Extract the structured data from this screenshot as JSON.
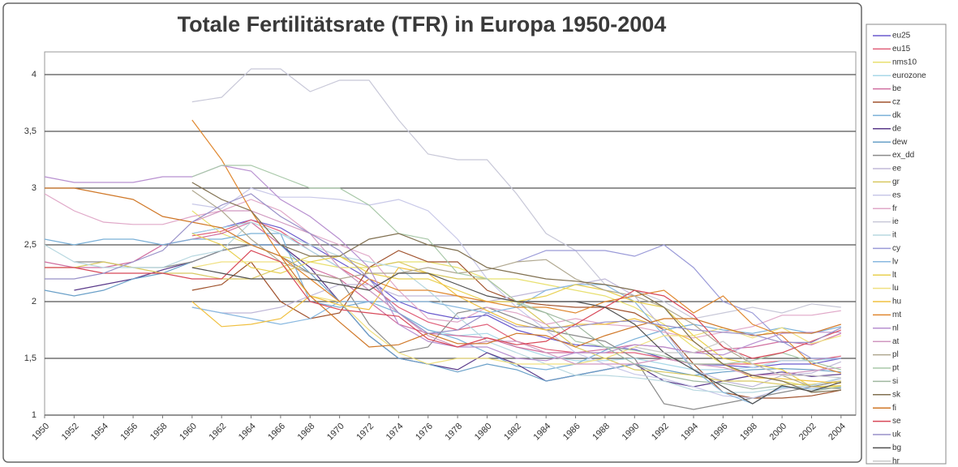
{
  "chart_data": {
    "type": "line",
    "title": "Totale Fertilitätsrate (TFR) in Europa 1950-2004",
    "x": [
      1950,
      1952,
      1954,
      1956,
      1958,
      1960,
      1962,
      1964,
      1966,
      1968,
      1970,
      1972,
      1974,
      1976,
      1978,
      1980,
      1982,
      1984,
      1986,
      1988,
      1990,
      1992,
      1994,
      1996,
      1998,
      2000,
      2002,
      2004
    ],
    "xlim": [
      1950,
      2005
    ],
    "xticks": [
      1950,
      1952,
      1954,
      1956,
      1958,
      1960,
      1962,
      1964,
      1966,
      1968,
      1970,
      1972,
      1974,
      1976,
      1978,
      1980,
      1982,
      1984,
      1986,
      1988,
      1990,
      1992,
      1994,
      1996,
      1998,
      2000,
      2002,
      2004
    ],
    "ylim": [
      1,
      4.2
    ],
    "yticks": [
      1,
      {
        "value": 1.5,
        "label": "1,5"
      },
      2,
      {
        "value": 2.5,
        "label": "2,5"
      },
      3,
      {
        "value": 3.5,
        "label": "3,5"
      },
      4
    ],
    "grid": true,
    "series": [
      {
        "name": "eu25",
        "color": "#6a5acd",
        "values": [
          null,
          null,
          null,
          null,
          null,
          2.6,
          2.65,
          2.72,
          2.65,
          2.5,
          2.35,
          2.2,
          2.0,
          1.9,
          1.85,
          1.88,
          1.75,
          1.68,
          1.62,
          1.6,
          1.58,
          1.5,
          1.45,
          1.44,
          1.42,
          1.45,
          1.45,
          1.5
        ]
      },
      {
        "name": "eu15",
        "color": "#e0607a",
        "values": [
          null,
          null,
          null,
          null,
          null,
          2.58,
          2.62,
          2.72,
          2.62,
          2.45,
          2.3,
          2.15,
          1.95,
          1.82,
          1.75,
          1.8,
          1.65,
          1.58,
          1.55,
          1.55,
          1.55,
          1.5,
          1.45,
          1.45,
          1.45,
          1.48,
          1.48,
          1.52
        ]
      },
      {
        "name": "nms10",
        "color": "#e8e070",
        "values": [
          null,
          null,
          null,
          null,
          null,
          2.8,
          2.6,
          2.5,
          2.4,
          2.35,
          2.3,
          2.3,
          2.35,
          2.35,
          2.3,
          2.2,
          2.2,
          2.15,
          2.1,
          2.05,
          1.95,
          1.8,
          1.6,
          1.45,
          1.35,
          1.3,
          1.25,
          1.25
        ]
      },
      {
        "name": "eurozone",
        "color": "#a8d8e8",
        "values": [
          null,
          null,
          null,
          null,
          null,
          2.6,
          2.65,
          2.7,
          2.6,
          2.45,
          2.3,
          2.1,
          1.9,
          1.75,
          1.7,
          1.72,
          1.6,
          1.52,
          1.48,
          1.48,
          1.5,
          1.45,
          1.4,
          1.4,
          1.42,
          1.48,
          1.48,
          1.5
        ]
      },
      {
        "name": "be",
        "color": "#d06fa0",
        "values": [
          2.35,
          2.3,
          2.3,
          2.35,
          2.5,
          2.55,
          2.6,
          2.7,
          2.5,
          2.3,
          2.2,
          2.0,
          1.8,
          1.72,
          1.7,
          1.68,
          1.6,
          1.55,
          1.55,
          1.58,
          1.62,
          1.6,
          1.55,
          1.58,
          1.6,
          1.65,
          1.62,
          1.72
        ]
      },
      {
        "name": "cz",
        "color": "#a0522d",
        "values": [
          null,
          null,
          null,
          null,
          null,
          2.1,
          2.15,
          2.35,
          2.0,
          1.85,
          1.9,
          2.3,
          2.45,
          2.35,
          2.35,
          2.1,
          2.0,
          1.97,
          1.95,
          1.95,
          1.9,
          1.75,
          1.45,
          1.2,
          1.15,
          1.15,
          1.17,
          1.22
        ]
      },
      {
        "name": "dk",
        "color": "#7ab0d8",
        "values": [
          2.55,
          2.5,
          2.55,
          2.55,
          2.5,
          2.55,
          2.55,
          2.6,
          2.6,
          2.0,
          1.95,
          2.0,
          1.9,
          1.75,
          1.67,
          1.55,
          1.43,
          1.4,
          1.45,
          1.57,
          1.67,
          1.75,
          1.8,
          1.75,
          1.72,
          1.77,
          1.72,
          1.78
        ]
      },
      {
        "name": "de",
        "color": "#5a3a8a",
        "values": [
          null,
          2.1,
          2.15,
          2.2,
          2.28,
          2.35,
          2.45,
          2.5,
          2.5,
          2.3,
          2.0,
          1.7,
          1.5,
          1.45,
          1.4,
          1.55,
          1.45,
          1.3,
          1.35,
          1.4,
          1.45,
          1.3,
          1.25,
          1.3,
          1.35,
          1.38,
          1.34,
          1.36
        ]
      },
      {
        "name": "dew",
        "color": "#6aa0c8",
        "values": [
          2.1,
          2.05,
          2.1,
          2.2,
          2.25,
          2.35,
          2.45,
          2.5,
          2.5,
          2.25,
          2.0,
          1.7,
          1.5,
          1.45,
          1.38,
          1.45,
          1.4,
          1.3,
          1.35,
          1.4,
          1.45,
          1.4,
          1.35,
          1.38,
          1.4,
          1.41,
          1.4,
          1.38
        ]
      },
      {
        "name": "ex_dd",
        "color": "#8a8a8a",
        "values": [
          null,
          2.35,
          2.35,
          2.3,
          2.3,
          2.35,
          2.45,
          2.5,
          2.4,
          2.25,
          2.2,
          1.8,
          1.55,
          1.6,
          1.9,
          1.95,
          1.85,
          1.75,
          1.7,
          1.65,
          1.5,
          1.1,
          1.05,
          1.1,
          1.15,
          1.2,
          1.25,
          1.3
        ]
      },
      {
        "name": "ee",
        "color": "#c0b8d8",
        "values": [
          null,
          null,
          null,
          null,
          null,
          1.95,
          1.9,
          1.9,
          1.95,
          2.05,
          2.15,
          2.15,
          2.05,
          2.05,
          2.05,
          2.0,
          2.05,
          2.1,
          2.15,
          2.2,
          2.05,
          1.75,
          1.4,
          1.3,
          1.25,
          1.35,
          1.37,
          1.47
        ]
      },
      {
        "name": "gr",
        "color": "#d8c860",
        "values": [
          2.3,
          2.3,
          2.35,
          2.3,
          2.25,
          2.25,
          2.2,
          2.2,
          2.3,
          2.4,
          2.4,
          2.3,
          2.35,
          2.25,
          2.2,
          2.2,
          2.0,
          1.8,
          1.6,
          1.5,
          1.4,
          1.38,
          1.35,
          1.3,
          1.3,
          1.27,
          1.27,
          1.3
        ]
      },
      {
        "name": "es",
        "color": "#c8c8e8",
        "values": [
          null,
          null,
          null,
          null,
          null,
          2.86,
          2.82,
          3.0,
          2.92,
          2.92,
          2.9,
          2.85,
          2.9,
          2.8,
          2.55,
          2.2,
          1.95,
          1.75,
          1.55,
          1.45,
          1.36,
          1.32,
          1.25,
          1.17,
          1.15,
          1.23,
          1.26,
          1.32
        ]
      },
      {
        "name": "fr",
        "color": "#e0a8c8",
        "values": [
          2.95,
          2.8,
          2.7,
          2.68,
          2.68,
          2.75,
          2.8,
          2.9,
          2.8,
          2.6,
          2.5,
          2.4,
          2.1,
          1.85,
          1.82,
          1.95,
          1.9,
          1.8,
          1.85,
          1.8,
          1.78,
          1.73,
          1.68,
          1.73,
          1.78,
          1.88,
          1.88,
          1.92
        ]
      },
      {
        "name": "ie",
        "color": "#c8c8d8",
        "values": [
          null,
          null,
          null,
          null,
          null,
          3.76,
          3.8,
          4.05,
          4.05,
          3.85,
          3.95,
          3.95,
          3.6,
          3.3,
          3.25,
          3.25,
          2.95,
          2.6,
          2.45,
          2.15,
          2.1,
          2.0,
          1.85,
          1.9,
          1.95,
          1.9,
          1.98,
          1.95
        ]
      },
      {
        "name": "it",
        "color": "#b8d8e0",
        "values": [
          2.5,
          2.35,
          2.3,
          2.3,
          2.3,
          2.4,
          2.45,
          2.7,
          2.6,
          2.5,
          2.4,
          2.35,
          2.3,
          2.1,
          1.87,
          1.65,
          1.55,
          1.45,
          1.35,
          1.35,
          1.33,
          1.3,
          1.22,
          1.2,
          1.2,
          1.24,
          1.26,
          1.33
        ]
      },
      {
        "name": "cy",
        "color": "#9a9ad8",
        "values": [
          null,
          null,
          null,
          null,
          null,
          null,
          null,
          null,
          null,
          null,
          null,
          null,
          null,
          null,
          null,
          null,
          2.35,
          2.45,
          2.45,
          2.45,
          2.4,
          2.5,
          2.3,
          2.0,
          1.9,
          1.65,
          1.5,
          1.5
        ]
      },
      {
        "name": "lv",
        "color": "#88b8e0",
        "values": [
          null,
          null,
          null,
          null,
          null,
          1.95,
          1.9,
          1.85,
          1.8,
          1.85,
          2.0,
          2.0,
          2.0,
          2.0,
          1.95,
          1.9,
          1.95,
          2.1,
          2.15,
          2.15,
          2.0,
          1.7,
          1.4,
          1.2,
          1.1,
          1.25,
          1.23,
          1.24
        ]
      },
      {
        "name": "lt",
        "color": "#e8d050",
        "values": [
          null,
          null,
          null,
          null,
          null,
          2.6,
          2.5,
          2.3,
          2.25,
          2.35,
          2.4,
          2.25,
          2.2,
          2.2,
          2.1,
          2.0,
          2.0,
          2.05,
          2.15,
          2.1,
          2.0,
          1.95,
          1.7,
          1.5,
          1.45,
          1.4,
          1.25,
          1.26
        ]
      },
      {
        "name": "lu",
        "color": "#f0e080",
        "values": [
          null,
          null,
          null,
          null,
          null,
          2.3,
          2.35,
          2.35,
          2.35,
          2.05,
          2.0,
          1.75,
          1.55,
          1.45,
          1.5,
          1.5,
          1.45,
          1.45,
          1.45,
          1.5,
          1.6,
          1.7,
          1.7,
          1.77,
          1.68,
          1.77,
          1.63,
          1.7
        ]
      },
      {
        "name": "hu",
        "color": "#f0c040",
        "values": [
          null,
          null,
          null,
          null,
          null,
          2.0,
          1.78,
          1.8,
          1.85,
          2.05,
          1.97,
          1.93,
          2.3,
          2.25,
          2.05,
          1.92,
          1.8,
          1.75,
          1.8,
          1.8,
          1.85,
          1.77,
          1.65,
          1.45,
          1.33,
          1.32,
          1.3,
          1.28
        ]
      },
      {
        "name": "mt",
        "color": "#e08830",
        "values": [
          null,
          null,
          null,
          null,
          null,
          3.6,
          3.25,
          2.8,
          2.4,
          2.2,
          2.0,
          2.2,
          2.1,
          2.1,
          2.05,
          2.0,
          1.95,
          1.95,
          1.9,
          2.0,
          2.05,
          2.1,
          1.9,
          2.05,
          1.8,
          1.7,
          1.45,
          1.37
        ]
      },
      {
        "name": "nl",
        "color": "#b890d0",
        "values": [
          3.1,
          3.05,
          3.05,
          3.05,
          3.1,
          3.1,
          3.2,
          3.15,
          2.9,
          2.75,
          2.55,
          2.3,
          1.8,
          1.65,
          1.6,
          1.6,
          1.5,
          1.48,
          1.55,
          1.55,
          1.62,
          1.6,
          1.55,
          1.53,
          1.63,
          1.72,
          1.73,
          1.73
        ]
      },
      {
        "name": "at",
        "color": "#d098c0",
        "values": [
          null,
          null,
          null,
          null,
          null,
          2.7,
          2.8,
          2.8,
          2.7,
          2.6,
          2.3,
          2.1,
          1.9,
          1.7,
          1.6,
          1.65,
          1.65,
          1.55,
          1.45,
          1.45,
          1.45,
          1.5,
          1.45,
          1.42,
          1.35,
          1.36,
          1.39,
          1.42
        ]
      },
      {
        "name": "pl",
        "color": "#b0a890",
        "values": [
          null,
          null,
          null,
          null,
          null,
          2.98,
          2.8,
          2.55,
          2.35,
          2.25,
          2.2,
          2.25,
          2.25,
          2.3,
          2.25,
          2.28,
          2.35,
          2.37,
          2.2,
          2.1,
          2.05,
          1.95,
          1.8,
          1.6,
          1.45,
          1.35,
          1.25,
          1.23
        ]
      },
      {
        "name": "pt",
        "color": "#a8c8a8",
        "values": [
          null,
          null,
          null,
          null,
          null,
          3.1,
          3.2,
          3.2,
          3.1,
          3.0,
          3.0,
          2.85,
          2.6,
          2.55,
          2.25,
          2.2,
          2.0,
          1.9,
          1.65,
          1.6,
          1.57,
          1.52,
          1.45,
          1.45,
          1.48,
          1.55,
          1.47,
          1.4
        ]
      },
      {
        "name": "si",
        "color": "#a0b8a0",
        "values": [
          null,
          null,
          null,
          null,
          null,
          null,
          null,
          null,
          null,
          null,
          null,
          null,
          null,
          null,
          null,
          null,
          1.98,
          1.9,
          1.8,
          1.6,
          1.45,
          1.35,
          1.3,
          1.28,
          1.23,
          1.26,
          1.21,
          1.25
        ]
      },
      {
        "name": "sk",
        "color": "#807050",
        "values": [
          null,
          null,
          null,
          null,
          null,
          3.05,
          2.9,
          2.8,
          2.5,
          2.4,
          2.4,
          2.55,
          2.6,
          2.5,
          2.45,
          2.3,
          2.25,
          2.2,
          2.18,
          2.15,
          2.1,
          1.95,
          1.65,
          1.45,
          1.35,
          1.3,
          1.2,
          1.22
        ]
      },
      {
        "name": "fi",
        "color": "#d07828",
        "values": [
          3.0,
          3.0,
          2.95,
          2.9,
          2.75,
          2.7,
          2.65,
          2.5,
          2.4,
          2.05,
          1.82,
          1.6,
          1.62,
          1.72,
          1.63,
          1.63,
          1.72,
          1.7,
          1.6,
          1.7,
          1.78,
          1.85,
          1.85,
          1.77,
          1.7,
          1.73,
          1.72,
          1.8
        ]
      },
      {
        "name": "se",
        "color": "#d84858",
        "values": [
          2.3,
          2.3,
          2.25,
          2.25,
          2.25,
          2.2,
          2.2,
          2.45,
          2.35,
          2.0,
          1.93,
          1.9,
          1.87,
          1.67,
          1.6,
          1.68,
          1.62,
          1.65,
          1.8,
          1.95,
          2.1,
          2.05,
          1.88,
          1.6,
          1.5,
          1.55,
          1.65,
          1.75
        ]
      },
      {
        "name": "uk",
        "color": "#9890c8",
        "values": [
          2.2,
          2.2,
          2.25,
          2.35,
          2.45,
          2.7,
          2.85,
          2.95,
          2.75,
          2.6,
          2.45,
          2.2,
          1.9,
          1.72,
          1.75,
          1.9,
          1.78,
          1.77,
          1.78,
          1.82,
          1.83,
          1.79,
          1.75,
          1.73,
          1.71,
          1.64,
          1.64,
          1.77
        ]
      },
      {
        "name": "bg",
        "color": "#505050",
        "values": [
          null,
          null,
          null,
          null,
          null,
          2.3,
          2.25,
          2.2,
          2.2,
          2.2,
          2.15,
          2.1,
          2.25,
          2.25,
          2.15,
          2.05,
          2.0,
          2.0,
          2.0,
          1.95,
          1.8,
          1.55,
          1.4,
          1.25,
          1.1,
          1.26,
          1.21,
          1.29
        ]
      },
      {
        "name": "hr",
        "color": "#c8c8c8",
        "values": [
          null,
          null,
          null,
          null,
          null,
          null,
          null,
          null,
          null,
          null,
          null,
          null,
          null,
          null,
          null,
          null,
          null,
          null,
          null,
          null,
          1.6,
          1.55,
          1.55,
          1.65,
          1.45,
          1.35,
          1.35,
          1.33
        ]
      }
    ]
  }
}
